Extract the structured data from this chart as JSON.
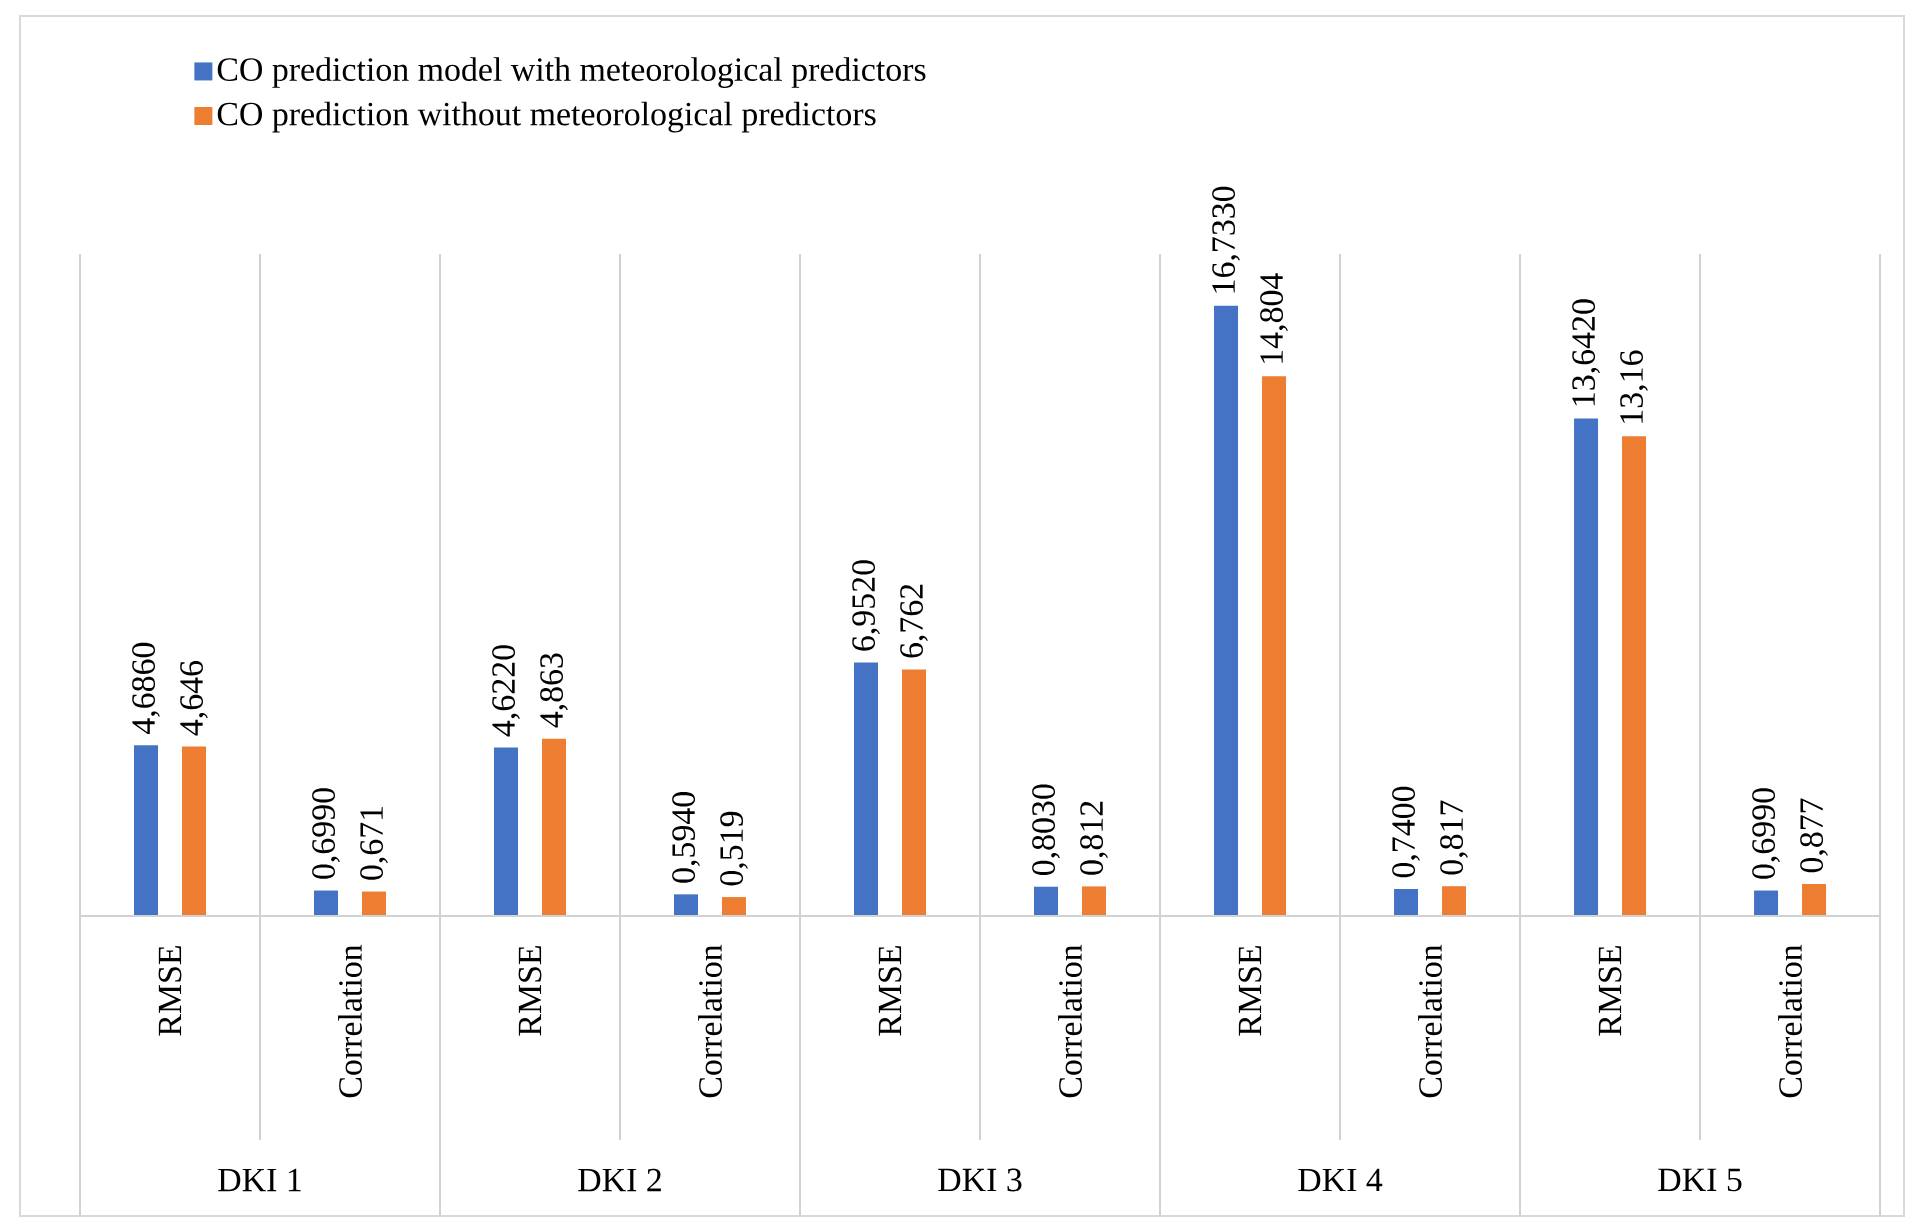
{
  "chart_data": {
    "type": "bar",
    "categories": [
      "RMSE",
      "Correlation",
      "RMSE",
      "Correlation",
      "RMSE",
      "Correlation",
      "RMSE",
      "Correlation",
      "RMSE",
      "Correlation"
    ],
    "annotations": [
      "DKI 1",
      "DKI 2",
      "DKI 3",
      "DKI 4",
      "DKI 5"
    ],
    "series": [
      {
        "name": "CO prediction model with meteorological predictors",
        "color": "#4472c4",
        "values": [
          4.686,
          0.699,
          4.622,
          0.594,
          6.952,
          0.803,
          16.733,
          0.74,
          13.642,
          0.699
        ],
        "value_labels": [
          "4,6860",
          "0,6990",
          "4,6220",
          "0,5940",
          "6,9520",
          "0,8030",
          "16,7330",
          "0,7400",
          "13,6420",
          "0,6990"
        ]
      },
      {
        "name": "CO prediction without meteorological predictors",
        "color": "#ed7d31",
        "values": [
          4.646,
          0.671,
          4.863,
          0.519,
          6.762,
          0.812,
          14.804,
          0.817,
          13.16,
          0.877
        ],
        "value_labels": [
          "4,646",
          "0,671",
          "4,863",
          "0,519",
          "6,762",
          "0,812",
          "14,804",
          "0,817",
          "13,16",
          "0,877"
        ]
      }
    ],
    "legend": "top left"
  }
}
